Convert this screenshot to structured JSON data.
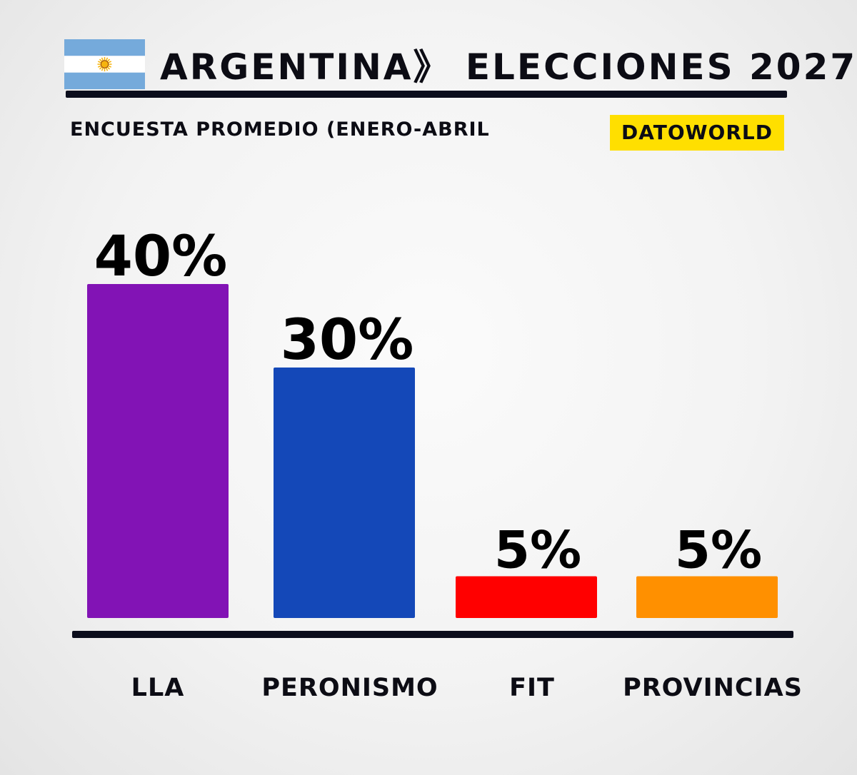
{
  "header": {
    "title": "ARGENTINA》 ELECCIONES 2027",
    "subtitle": "ENCUESTA PROMEDIO (ENERO-ABRIL",
    "brand": "DATOWORLD",
    "flag_icon": "argentina-flag-icon"
  },
  "colors": {
    "flag_blue": "#75AADB",
    "flag_sun": "#F6B40E",
    "brand_bg": "#FFDF00",
    "rule": "#0B0D1C"
  },
  "chart_data": {
    "type": "bar",
    "title": "ARGENTINA》 ELECCIONES 2027",
    "subtitle": "ENCUESTA PROMEDIO (ENERO-ABRIL",
    "categories": [
      "LLA",
      "PERONISMO",
      "FIT",
      "PROVINCIAS"
    ],
    "values": [
      40,
      30,
      5,
      5
    ],
    "value_labels": [
      "40%",
      "30%",
      "5%",
      "5%"
    ],
    "colors": [
      "#8213B5",
      "#1448B8",
      "#FF0000",
      "#FF9000"
    ],
    "unit": "%",
    "grid": false,
    "legend": "none"
  }
}
